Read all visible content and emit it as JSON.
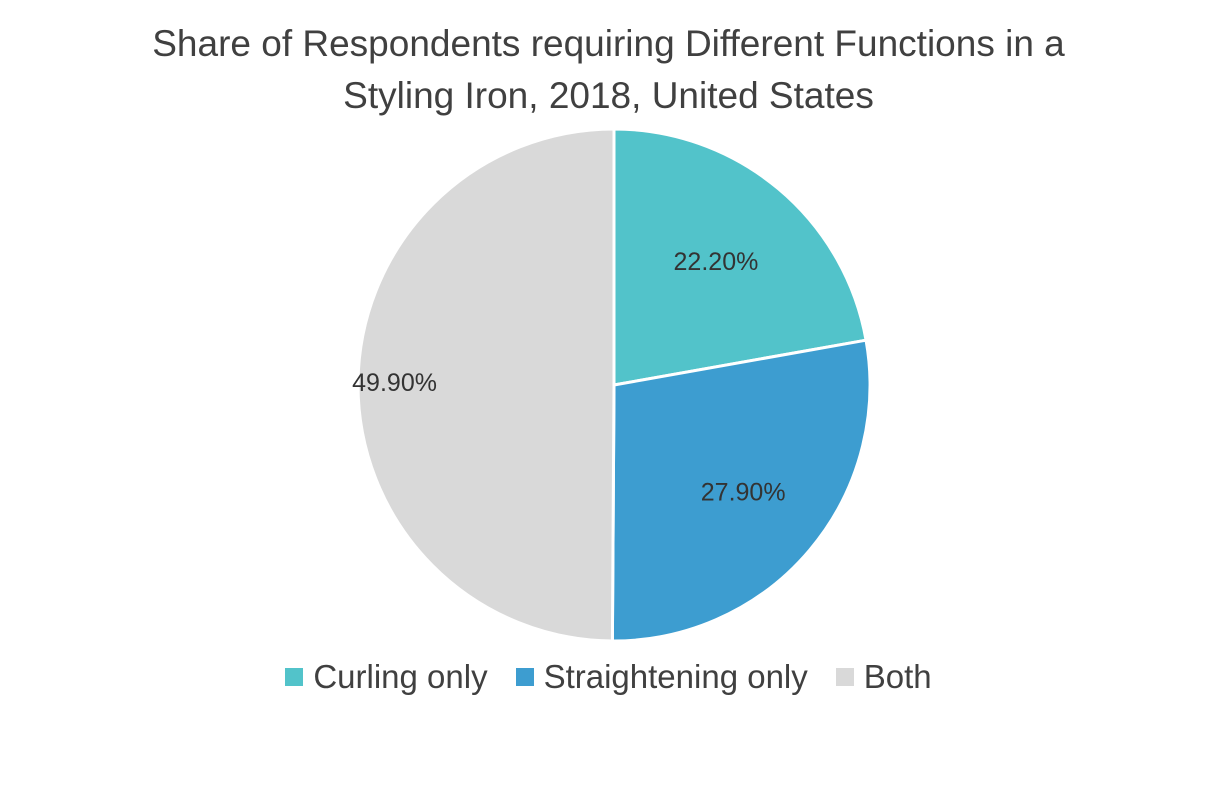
{
  "chart_data": {
    "type": "pie",
    "title_lines": [
      "Share of Respondents requiring Different Functions in a",
      "Styling Iron, 2018, United States"
    ],
    "slices": [
      {
        "label": "Curling only",
        "value": 22.2,
        "display": "22.20%",
        "color": "#52C3CA"
      },
      {
        "label": "Straightening only",
        "value": 27.9,
        "display": "27.90%",
        "color": "#3D9DD0"
      },
      {
        "label": "Both",
        "value": 49.9,
        "display": "49.90%",
        "color": "#D9D9D9"
      }
    ],
    "start_angle": "12 o'clock",
    "direction": "clockwise",
    "legend_position": "bottom"
  }
}
